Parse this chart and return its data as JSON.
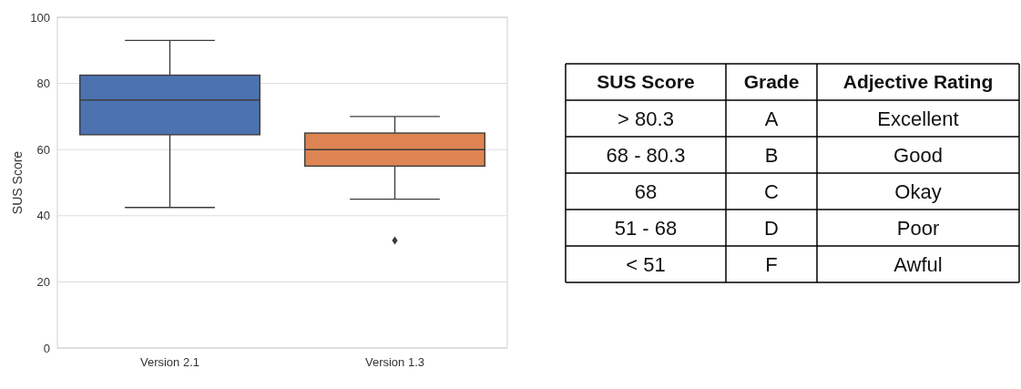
{
  "chart_data": [
    {
      "type": "box",
      "ylabel": "SUS Score",
      "categories": [
        "Version 2.1",
        "Version 1.3"
      ],
      "colors": [
        "#4c72b0",
        "#dd8452"
      ],
      "boxes": [
        {
          "low": 42.5,
          "q1": 64.5,
          "median": 75,
          "q3": 82.5,
          "high": 93
        },
        {
          "low": 45,
          "q1": 55,
          "median": 60,
          "q3": 65,
          "high": 70,
          "outliers": [
            32.5
          ]
        }
      ],
      "ylim": [
        0,
        100
      ],
      "yticks": [
        0,
        20,
        40,
        60,
        80,
        100
      ],
      "grid": "y",
      "marker": "diamond"
    },
    {
      "type": "other",
      "categories": [
        "SUS Score",
        "Grade",
        "Adjective Rating"
      ],
      "cell_labels": [
        [
          "> 80.3",
          "A",
          "Excellent"
        ],
        [
          "68 - 80.3",
          "B",
          "Good"
        ],
        [
          "68",
          "C",
          "Okay"
        ],
        [
          "51 - 68",
          "D",
          "Poor"
        ],
        [
          "< 51",
          "F",
          "Awful"
        ]
      ]
    }
  ]
}
